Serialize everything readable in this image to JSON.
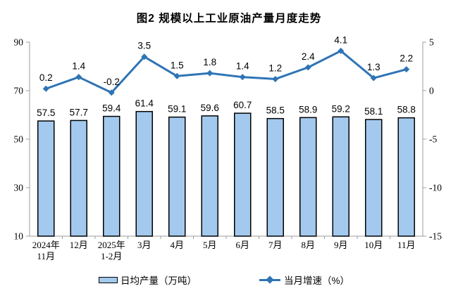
{
  "title": "图2  规模以上工业原油产量月度走势",
  "chart_data": {
    "type": "combo-bar-line",
    "categories": [
      "2024年\n11月",
      "12月",
      "2025年\n1-2月",
      "3月",
      "4月",
      "5月",
      "6月",
      "7月",
      "8月",
      "9月",
      "10月",
      "11月"
    ],
    "series": [
      {
        "name": "日均产量（万吨）",
        "type": "bar",
        "axis": "left",
        "values": [
          57.5,
          57.7,
          59.4,
          61.4,
          59.1,
          59.6,
          60.7,
          58.5,
          58.9,
          59.2,
          58.1,
          58.8
        ]
      },
      {
        "name": "当月增速（%）",
        "type": "line",
        "axis": "right",
        "values": [
          0.2,
          1.4,
          -0.2,
          3.5,
          1.5,
          1.8,
          1.4,
          1.2,
          2.4,
          4.1,
          1.3,
          2.2
        ]
      }
    ],
    "left_axis": {
      "min": 10,
      "max": 90,
      "ticks": [
        10,
        30,
        50,
        70,
        90
      ]
    },
    "right_axis": {
      "min": -15,
      "max": 5,
      "ticks": [
        -15,
        -10,
        -5,
        0,
        5
      ]
    },
    "grid": false,
    "legend_position": "bottom",
    "data_labels": true
  },
  "colors": {
    "bar_fill": "#A3C9EE",
    "bar_stroke": "#000000",
    "line": "#2E74B5",
    "axis": "#9C9C9C",
    "text": "#000000",
    "background": "#FFFFFF"
  }
}
